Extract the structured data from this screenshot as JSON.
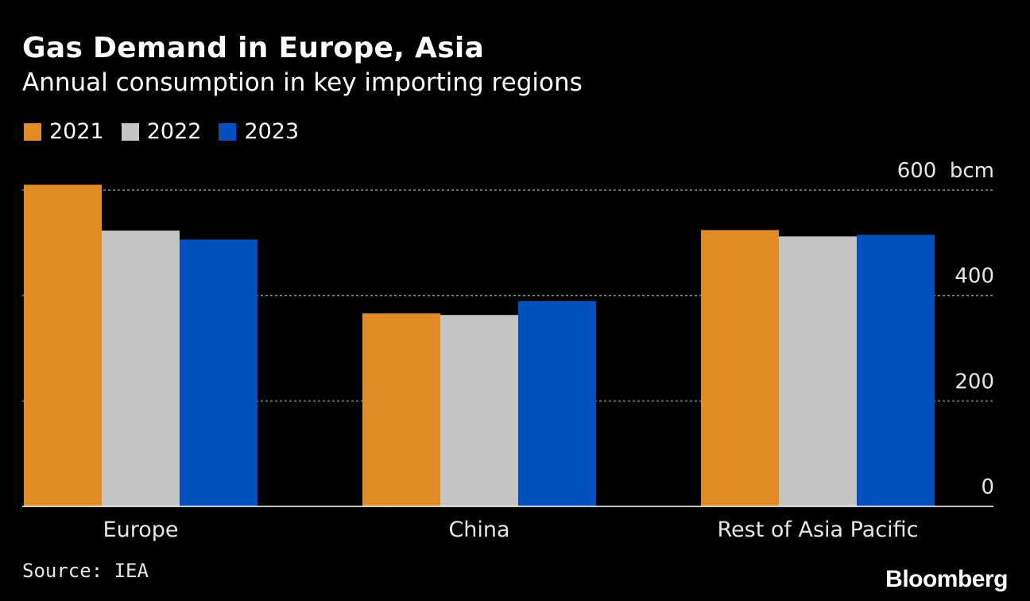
{
  "header": {
    "title": "Gas Demand in Europe, Asia",
    "subtitle": "Annual consumption in key importing regions"
  },
  "legend": [
    {
      "label": "2021",
      "color": "#e08b25"
    },
    {
      "label": "2022",
      "color": "#c4c4c4"
    },
    {
      "label": "2023",
      "color": "#0050be"
    }
  ],
  "footer": {
    "source": "Source: IEA",
    "brand": "Bloomberg"
  },
  "chart_data": {
    "type": "bar",
    "categories": [
      "Europe",
      "China",
      "Rest of Asia Pacific"
    ],
    "series": [
      {
        "name": "2021",
        "color": "#e08b25",
        "values": [
          610,
          366,
          524
        ]
      },
      {
        "name": "2022",
        "color": "#c4c4c4",
        "values": [
          523,
          363,
          512
        ]
      },
      {
        "name": "2023",
        "color": "#0050be",
        "values": [
          506,
          389,
          515
        ]
      }
    ],
    "y_ticks": [
      {
        "value": 0,
        "label": "0"
      },
      {
        "value": 200,
        "label": "200"
      },
      {
        "value": 400,
        "label": "400"
      },
      {
        "value": 600,
        "label": "600  bcm"
      }
    ],
    "ylim": [
      0,
      600
    ],
    "unit": "bcm",
    "grid": true,
    "y_axis_side": "right"
  }
}
